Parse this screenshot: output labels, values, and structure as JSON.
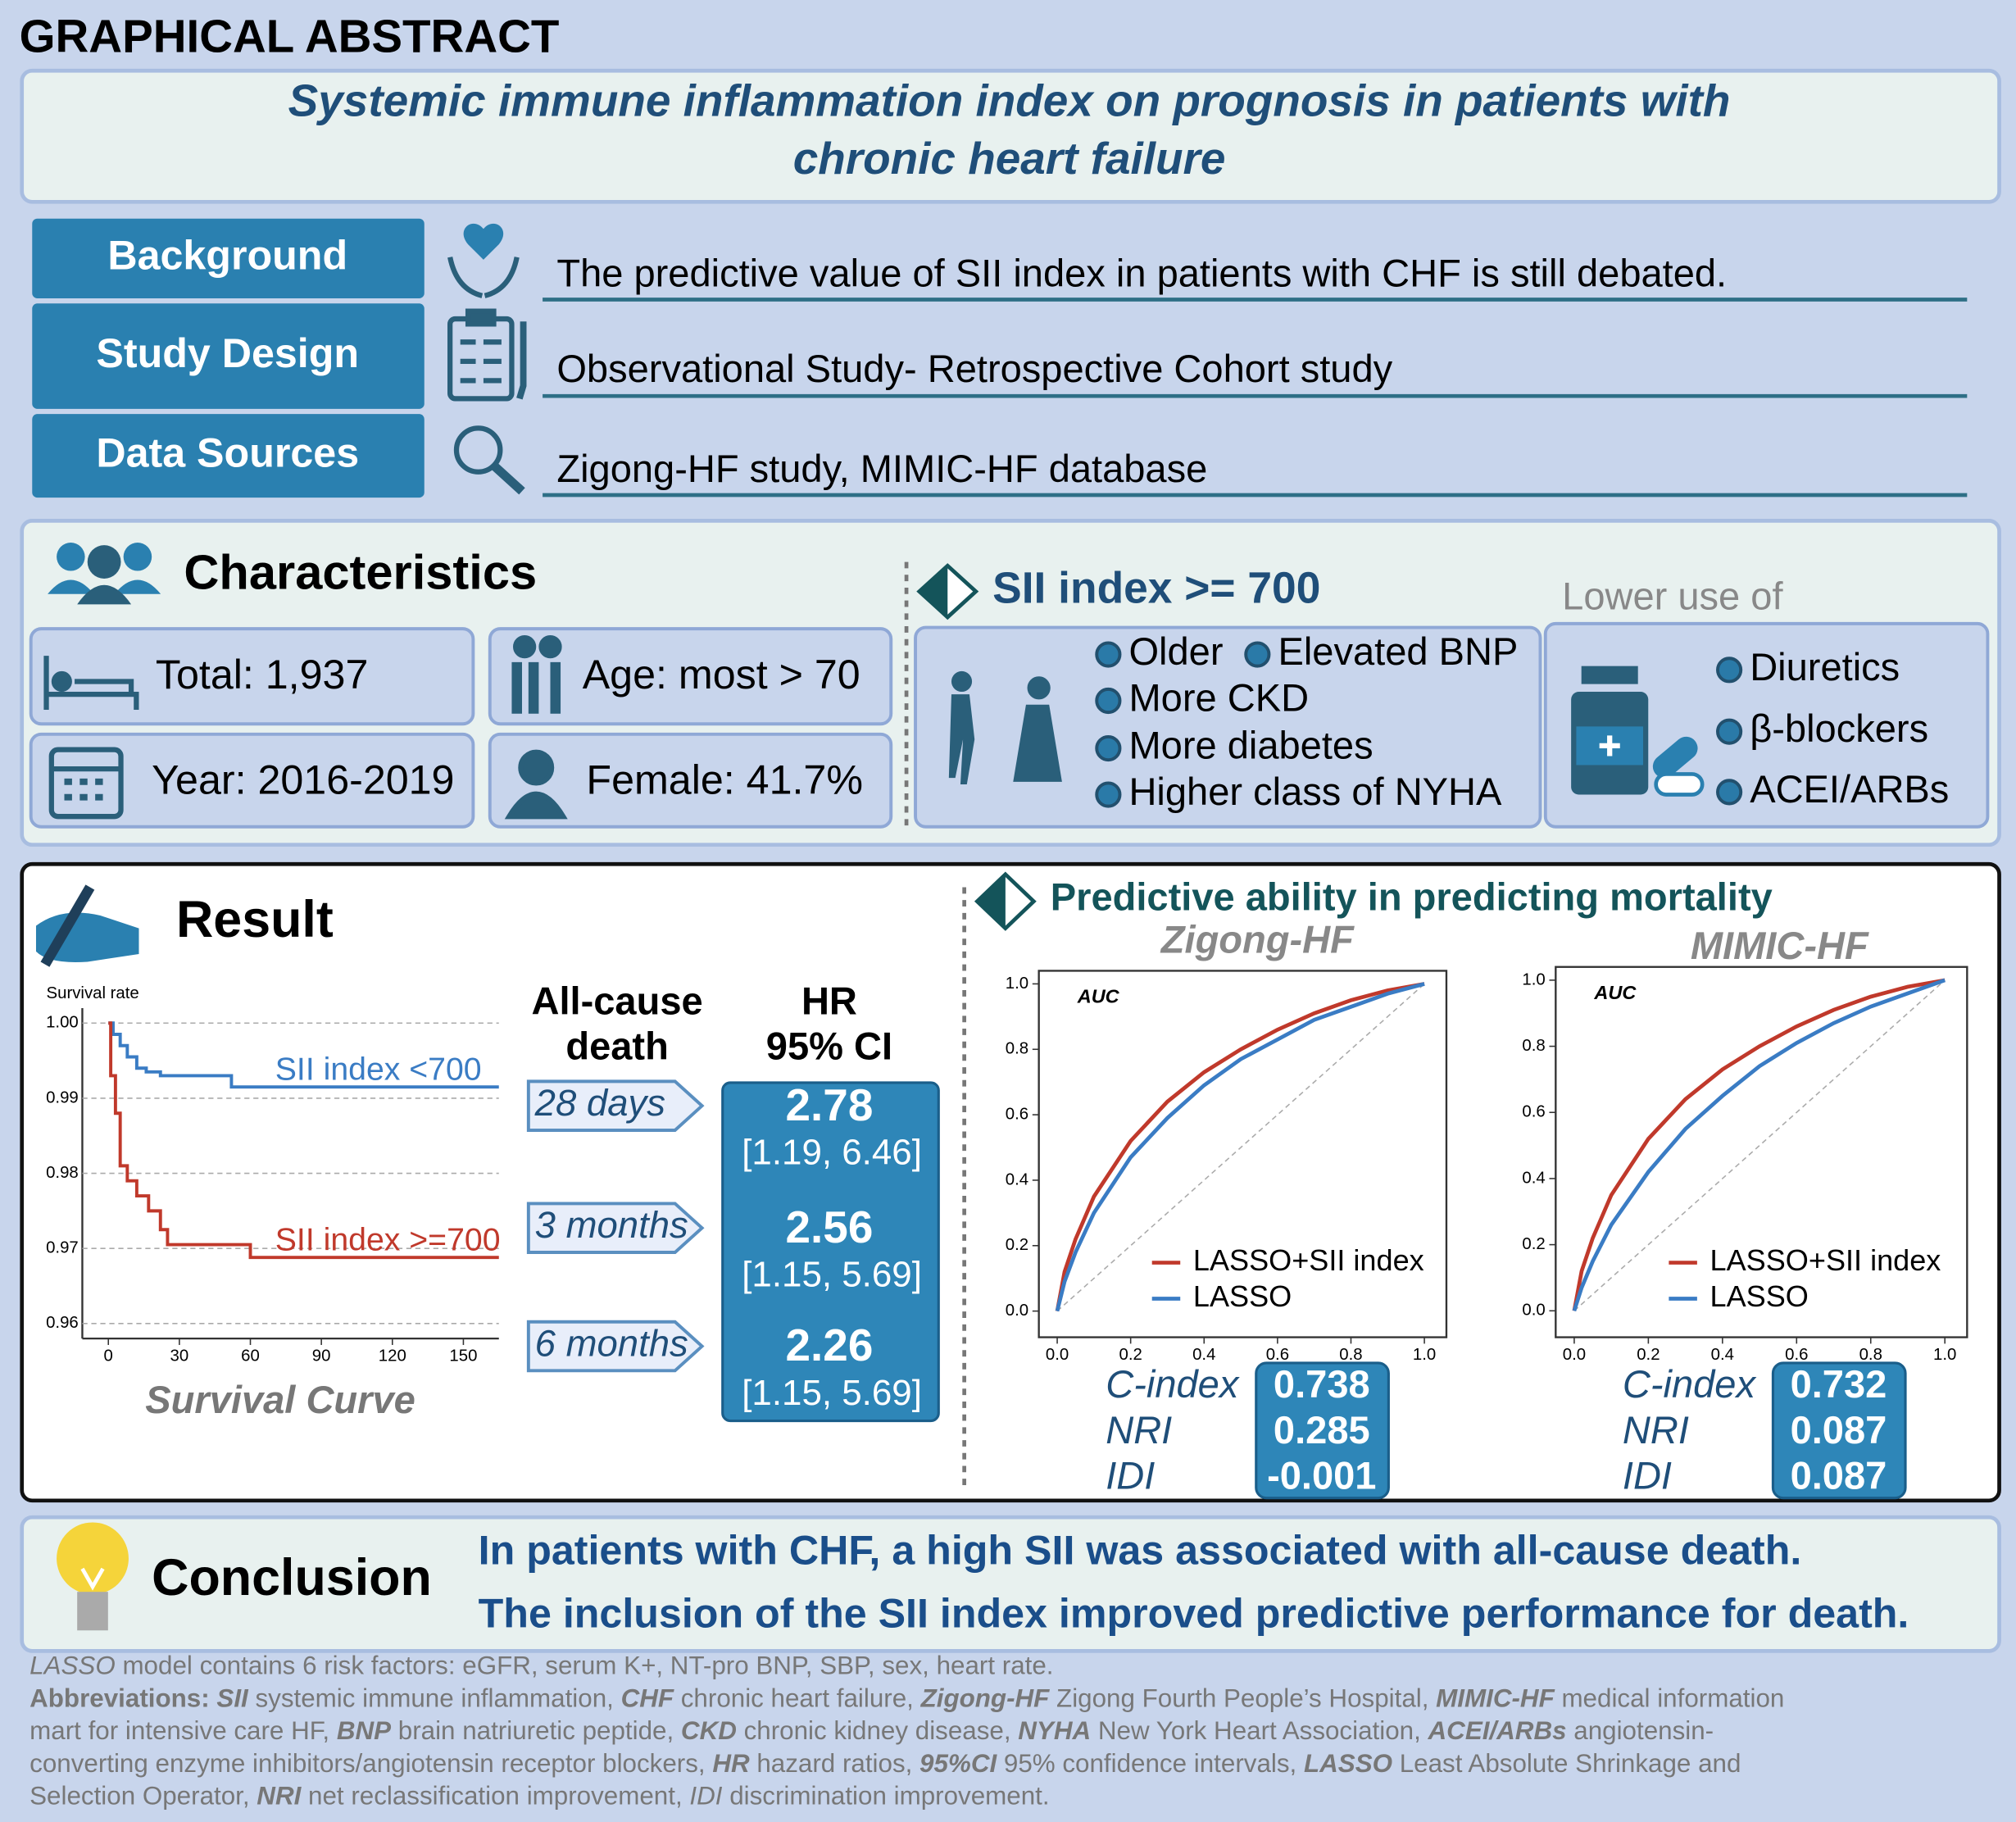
{
  "header": {
    "label": "GRAPHICAL  ABSTRACT",
    "title_lines": [
      "Systemic immune inflammation index on prognosis in patients with",
      "chronic heart failure"
    ]
  },
  "summary": [
    {
      "label": "Background",
      "text": "The predictive value of SII index in patients with CHF is still debated."
    },
    {
      "label": "Study Design",
      "text": "Observational Study- Retrospective Cohort study"
    },
    {
      "label": "Data Sources",
      "text": "Zigong-HF study, MIMIC-HF database"
    }
  ],
  "characteristics": {
    "title": "Characteristics",
    "items": [
      "Total:  1,937",
      "Age: most > 70",
      "Year: 2016-2019",
      "Female: 41.7%"
    ],
    "sii_title": "SII index >= 700",
    "sii_items": [
      "Older",
      "Elevated BNP",
      "More CKD",
      "More diabetes",
      "Higher class of NYHA"
    ],
    "lower_title": "Lower use of",
    "lower_items": [
      "Diuretics",
      "β-blockers",
      "ACEI/ARBs"
    ]
  },
  "result": {
    "title": "Result",
    "survival": {
      "type": "line",
      "y_label": "Survival rate",
      "caption": "Survival Curve",
      "xlim": [
        -11,
        165
      ],
      "ylim": [
        0.958,
        1.002
      ],
      "xticks": [
        0,
        30,
        60,
        90,
        120,
        150
      ],
      "yticks": [
        0.96,
        0.97,
        0.98,
        0.99,
        {
          "value": 1,
          "label": "1.00"
        }
      ],
      "grid": true,
      "series": [
        {
          "name": "SII index <700",
          "color": "#3a7cc4",
          "x": [
            0,
            2,
            2,
            5,
            5,
            8,
            8,
            12,
            12,
            16,
            16,
            22,
            22,
            52,
            52,
            165
          ],
          "values": [
            1,
            1,
            0.9985,
            0.9985,
            0.997,
            0.997,
            0.9955,
            0.9955,
            0.994,
            0.994,
            0.9935,
            0.9935,
            0.993,
            0.993,
            0.9915,
            0.9915
          ]
        },
        {
          "name": "SII index >=700",
          "color": "#c0392b",
          "x": [
            0,
            1,
            1,
            3,
            3,
            5,
            5,
            8,
            8,
            12,
            12,
            17,
            17,
            22,
            22,
            25,
            25,
            60,
            60,
            165
          ],
          "values": [
            1,
            1,
            0.993,
            0.993,
            0.988,
            0.988,
            0.981,
            0.981,
            0.979,
            0.979,
            0.977,
            0.977,
            0.975,
            0.975,
            0.9725,
            0.9725,
            0.9705,
            0.9705,
            0.9688,
            0.9688
          ]
        }
      ]
    },
    "hr": {
      "header_left": [
        "All-cause",
        "death"
      ],
      "header_right": [
        "HR",
        "95% CI"
      ],
      "rows": [
        {
          "period": "28 days",
          "hr": 2.78,
          "ci": "[1.19, 6.46]"
        },
        {
          "period": "3 months",
          "hr": 2.56,
          "ci": "[1.15, 5.69]"
        },
        {
          "period": "6 months",
          "hr": 2.26,
          "ci": "[1.15, 5.69]"
        }
      ]
    }
  },
  "prediction": {
    "title": "Predictive ability in predicting mortality",
    "charts": [
      {
        "type": "line",
        "title": "Zigong-HF",
        "annotation": "AUC",
        "box": true,
        "xlim": [
          -0.05,
          1.06
        ],
        "ylim": [
          -0.08,
          1.04
        ],
        "xticks": [
          {
            "value": 0,
            "label": "0.0"
          },
          0.2,
          0.4,
          0.6,
          0.8,
          {
            "value": 1,
            "label": "1.0"
          }
        ],
        "yticks": [
          {
            "value": 0,
            "label": "0.0"
          },
          0.2,
          0.4,
          0.6,
          0.8,
          {
            "value": 1,
            "label": "1.0"
          }
        ],
        "x": [
          0,
          0.02,
          0.05,
          0.1,
          0.2,
          0.3,
          0.4,
          0.5,
          0.6,
          0.7,
          0.8,
          0.9,
          1
        ],
        "series": [
          {
            "name": "LASSO+SII index",
            "color": "#c0392b",
            "values": [
              0,
              0.12,
              0.22,
              0.35,
              0.52,
              0.64,
              0.73,
              0.8,
              0.86,
              0.91,
              0.95,
              0.98,
              1
            ]
          },
          {
            "name": "LASSO",
            "color": "#3a7cc4",
            "values": [
              0,
              0.09,
              0.18,
              0.3,
              0.47,
              0.59,
              0.69,
              0.77,
              0.83,
              0.89,
              0.93,
              0.97,
              1
            ]
          }
        ],
        "metrics": [
          {
            "name": "C-index",
            "value": 0.738
          },
          {
            "name": "NRI",
            "value": 0.285
          },
          {
            "name": "IDI",
            "value": -0.001
          }
        ]
      },
      {
        "type": "line",
        "title": "MIMIC-HF",
        "annotation": "AUC",
        "box": true,
        "xlim": [
          -0.05,
          1.06
        ],
        "ylim": [
          -0.08,
          1.04
        ],
        "xticks": [
          {
            "value": 0,
            "label": "0.0"
          },
          0.2,
          0.4,
          0.6,
          0.8,
          {
            "value": 1,
            "label": "1.0"
          }
        ],
        "yticks": [
          {
            "value": 0,
            "label": "0.0"
          },
          0.2,
          0.4,
          0.6,
          0.8,
          {
            "value": 1,
            "label": "1.0"
          }
        ],
        "x": [
          0,
          0.02,
          0.05,
          0.1,
          0.2,
          0.3,
          0.4,
          0.5,
          0.6,
          0.7,
          0.8,
          0.9,
          1
        ],
        "series": [
          {
            "name": "LASSO+SII index",
            "color": "#c0392b",
            "values": [
              0,
              0.12,
              0.22,
              0.35,
              0.52,
              0.64,
              0.73,
              0.8,
              0.86,
              0.91,
              0.95,
              0.98,
              1
            ]
          },
          {
            "name": "LASSO",
            "color": "#3a7cc4",
            "values": [
              0,
              0.07,
              0.15,
              0.26,
              0.42,
              0.55,
              0.65,
              0.74,
              0.81,
              0.87,
              0.92,
              0.96,
              1
            ]
          }
        ],
        "metrics": [
          {
            "name": "C-index",
            "value": 0.732
          },
          {
            "name": "NRI",
            "value": 0.087
          },
          {
            "name": "IDI",
            "value": 0.087
          }
        ]
      }
    ]
  },
  "conclusion": {
    "title": "Conclusion",
    "lines": [
      "In patients with CHF, a high SII was associated with all-cause death.",
      "The inclusion of the SII index improved predictive performance for death."
    ]
  },
  "footnote": [
    [
      {
        "text": "LASSO",
        "style": "i"
      },
      {
        "text": " model contains 6 risk factors: eGFR, serum K+, NT-pro BNP, SBP, sex, heart rate.",
        "style": "regular"
      }
    ],
    [
      {
        "text": "Abbreviations: ",
        "style": "b"
      },
      {
        "text": "SII",
        "style": "bi"
      },
      {
        "text": " systemic immune inflammation, ",
        "style": "regular"
      },
      {
        "text": "CHF",
        "style": "bi"
      },
      {
        "text": " chronic heart failure, ",
        "style": "regular"
      },
      {
        "text": "Zigong-HF",
        "style": "bi"
      },
      {
        "text": " Zigong Fourth People’s Hospital, ",
        "style": "regular"
      },
      {
        "text": "MIMIC-HF",
        "style": "bi"
      },
      {
        "text": " medical information",
        "style": "regular"
      }
    ],
    [
      {
        "text": "mart for intensive care HF, ",
        "style": "regular"
      },
      {
        "text": "BNP",
        "style": "bi"
      },
      {
        "text": " brain natriuretic peptide, ",
        "style": "regular"
      },
      {
        "text": "CKD",
        "style": "bi"
      },
      {
        "text": " chronic kidney disease, ",
        "style": "regular"
      },
      {
        "text": "NYHA",
        "style": "bi"
      },
      {
        "text": " New York Heart Association, ",
        "style": "regular"
      },
      {
        "text": "ACEI/ARBs",
        "style": "bi"
      },
      {
        "text": " angiotensin-",
        "style": "regular"
      }
    ],
    [
      {
        "text": "converting enzyme inhibitors/angiotensin receptor blockers, ",
        "style": "regular"
      },
      {
        "text": "HR",
        "style": "bi"
      },
      {
        "text": " hazard ratios, ",
        "style": "regular"
      },
      {
        "text": "95%CI",
        "style": "bi"
      },
      {
        "text": " 95% confidence intervals, ",
        "style": "regular"
      },
      {
        "text": "LASSO",
        "style": "bi"
      },
      {
        "text": " Least Absolute Shrinkage and",
        "style": "regular"
      }
    ],
    [
      {
        "text": "Selection Operator, ",
        "style": "regular"
      },
      {
        "text": "NRI",
        "style": "bi"
      },
      {
        "text": " net reclassification improvement, ",
        "style": "regular"
      },
      {
        "text": "IDI",
        "style": "i"
      },
      {
        "text": " discrimination improvement.",
        "style": "regular"
      }
    ]
  ]
}
